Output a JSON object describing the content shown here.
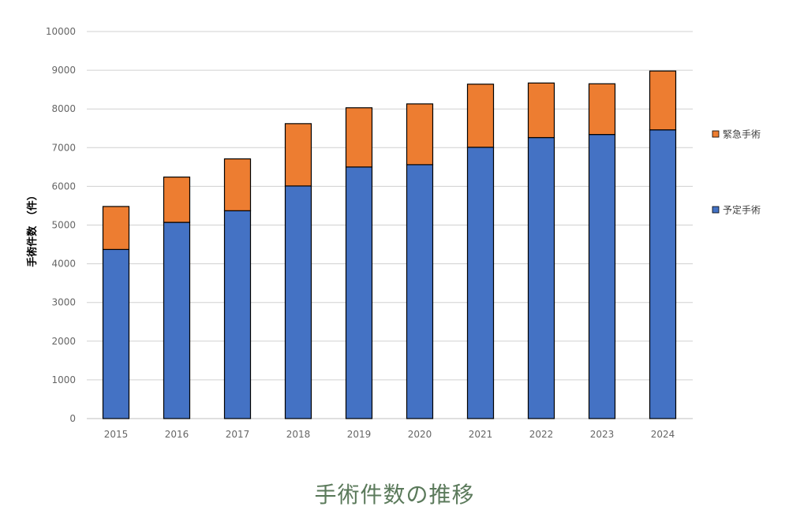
{
  "chart_data": {
    "type": "bar",
    "stacked": true,
    "title": "手術件数の推移",
    "ylabel": "手術件数　（件）",
    "xlabel": "",
    "ylim": [
      0,
      10000
    ],
    "ytick_step": 1000,
    "grid": true,
    "legend_position": "right",
    "categories": [
      "2015",
      "2016",
      "2017",
      "2018",
      "2019",
      "2020",
      "2021",
      "2022",
      "2023",
      "2024"
    ],
    "series": [
      {
        "name": "予定手術",
        "color": "#4472c4",
        "values": [
          4370,
          5070,
          5370,
          6010,
          6500,
          6560,
          7010,
          7260,
          7340,
          7460
        ]
      },
      {
        "name": "緊急手術",
        "color": "#ed7d31",
        "values": [
          1110,
          1170,
          1340,
          1610,
          1530,
          1570,
          1630,
          1410,
          1310,
          1520
        ]
      }
    ],
    "legend_order": [
      "緊急手術",
      "予定手術"
    ]
  }
}
